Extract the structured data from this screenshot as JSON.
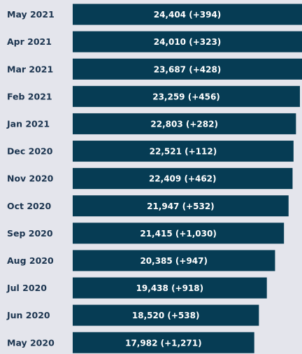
{
  "chart_data": {
    "type": "bar",
    "orientation": "horizontal",
    "color": "#063c54",
    "categories": [
      "May 2021",
      "Apr 2021",
      "Mar 2021",
      "Feb 2021",
      "Jan 2021",
      "Dec 2020",
      "Nov 2020",
      "Oct 2020",
      "Sep 2020",
      "Aug 2020",
      "Jul 2020",
      "Jun 2020",
      "May 2020"
    ],
    "values": [
      24404,
      24010,
      23687,
      23259,
      22803,
      22521,
      22409,
      21947,
      21415,
      20385,
      19438,
      18520,
      17982
    ],
    "value_labels": [
      "24,404 (+394)",
      "24,010 (+323)",
      "23,687 (+428)",
      "23,259 (+456)",
      "22,803 (+282)",
      "22,521 (+112)",
      "22,409 (+462)",
      "21,947 (+532)",
      "21,415 (+1,030)",
      "20,385 (+947)",
      "19,438 (+918)",
      "18,520 (+538)",
      "17,982 (+1,271)"
    ],
    "xlim": [
      -3000,
      23500
    ]
  }
}
